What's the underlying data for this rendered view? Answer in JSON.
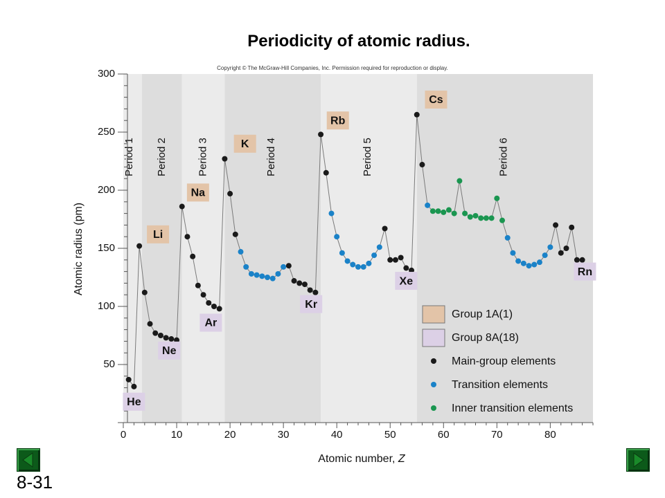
{
  "slide": {
    "title": "Periodicity of atomic radius.",
    "number": "8-31"
  },
  "chart_data": {
    "type": "scatter",
    "copyright": "Copyright © The McGraw-Hill Companies, Inc. Permission required for reproduction or display.",
    "xlabel": "Atomic number, ",
    "xlabel_italic": "Z",
    "ylabel": "Atomic radius (pm)",
    "xlim": [
      0,
      88
    ],
    "ylim": [
      0,
      300
    ],
    "xticks": [
      0,
      10,
      20,
      30,
      40,
      50,
      60,
      70,
      80
    ],
    "yticks": [
      50,
      100,
      150,
      200,
      250,
      300
    ],
    "periods": [
      {
        "label": "Period 1",
        "start": 0,
        "end": 3.5,
        "shade": "light"
      },
      {
        "label": "Period 2",
        "start": 3.5,
        "end": 11,
        "shade": "dark"
      },
      {
        "label": "Period 3",
        "start": 11,
        "end": 19,
        "shade": "light"
      },
      {
        "label": "Period 4",
        "start": 19,
        "end": 37,
        "shade": "dark"
      },
      {
        "label": "Period 5",
        "start": 37,
        "end": 55,
        "shade": "light"
      },
      {
        "label": "Period 6",
        "start": 55,
        "end": 88,
        "shade": "dark"
      }
    ],
    "legend": {
      "placement": "bottom-right",
      "items": [
        {
          "label": "Group 1A(1)",
          "kind": "swatch",
          "color": "#e3c4a8"
        },
        {
          "label": "Group 8A(18)",
          "kind": "swatch",
          "color": "#dcd0e6"
        },
        {
          "label": "Main-group elements",
          "kind": "dot",
          "color": "#1a1a1a"
        },
        {
          "label": "Transition elements",
          "kind": "dot",
          "color": "#1a82c8"
        },
        {
          "label": "Inner transition elements",
          "kind": "dot",
          "color": "#1a9650"
        }
      ]
    },
    "colors": {
      "main": "#1a1a1a",
      "transition": "#1a82c8",
      "inner": "#1a9650",
      "group1": "#e3c4a8",
      "group8": "#dcd0e6",
      "line": "#7a7a7a",
      "band_light": "#ebebeb",
      "band_dark": "#dddddd"
    },
    "points": [
      {
        "z": 1,
        "r": 37,
        "t": "m"
      },
      {
        "z": 2,
        "r": 31,
        "t": "m"
      },
      {
        "z": 3,
        "r": 152,
        "t": "m"
      },
      {
        "z": 4,
        "r": 112,
        "t": "m"
      },
      {
        "z": 5,
        "r": 85,
        "t": "m"
      },
      {
        "z": 6,
        "r": 77,
        "t": "m"
      },
      {
        "z": 7,
        "r": 75,
        "t": "m"
      },
      {
        "z": 8,
        "r": 73,
        "t": "m"
      },
      {
        "z": 9,
        "r": 72,
        "t": "m"
      },
      {
        "z": 10,
        "r": 71,
        "t": "m"
      },
      {
        "z": 11,
        "r": 186,
        "t": "m"
      },
      {
        "z": 12,
        "r": 160,
        "t": "m"
      },
      {
        "z": 13,
        "r": 143,
        "t": "m"
      },
      {
        "z": 14,
        "r": 118,
        "t": "m"
      },
      {
        "z": 15,
        "r": 110,
        "t": "m"
      },
      {
        "z": 16,
        "r": 103,
        "t": "m"
      },
      {
        "z": 17,
        "r": 100,
        "t": "m"
      },
      {
        "z": 18,
        "r": 98,
        "t": "m"
      },
      {
        "z": 19,
        "r": 227,
        "t": "m"
      },
      {
        "z": 20,
        "r": 197,
        "t": "m"
      },
      {
        "z": 21,
        "r": 162,
        "t": "m"
      },
      {
        "z": 22,
        "r": 147,
        "t": "t"
      },
      {
        "z": 23,
        "r": 134,
        "t": "t"
      },
      {
        "z": 24,
        "r": 128,
        "t": "t"
      },
      {
        "z": 25,
        "r": 127,
        "t": "t"
      },
      {
        "z": 26,
        "r": 126,
        "t": "t"
      },
      {
        "z": 27,
        "r": 125,
        "t": "t"
      },
      {
        "z": 28,
        "r": 124,
        "t": "t"
      },
      {
        "z": 29,
        "r": 128,
        "t": "t"
      },
      {
        "z": 30,
        "r": 134,
        "t": "t"
      },
      {
        "z": 31,
        "r": 135,
        "t": "m"
      },
      {
        "z": 32,
        "r": 122,
        "t": "m"
      },
      {
        "z": 33,
        "r": 120,
        "t": "m"
      },
      {
        "z": 34,
        "r": 119,
        "t": "m"
      },
      {
        "z": 35,
        "r": 114,
        "t": "m"
      },
      {
        "z": 36,
        "r": 112,
        "t": "m"
      },
      {
        "z": 37,
        "r": 248,
        "t": "m"
      },
      {
        "z": 38,
        "r": 215,
        "t": "m"
      },
      {
        "z": 39,
        "r": 180,
        "t": "t"
      },
      {
        "z": 40,
        "r": 160,
        "t": "t"
      },
      {
        "z": 41,
        "r": 146,
        "t": "t"
      },
      {
        "z": 42,
        "r": 139,
        "t": "t"
      },
      {
        "z": 43,
        "r": 136,
        "t": "t"
      },
      {
        "z": 44,
        "r": 134,
        "t": "t"
      },
      {
        "z": 45,
        "r": 134,
        "t": "t"
      },
      {
        "z": 46,
        "r": 137,
        "t": "t"
      },
      {
        "z": 47,
        "r": 144,
        "t": "t"
      },
      {
        "z": 48,
        "r": 151,
        "t": "t"
      },
      {
        "z": 49,
        "r": 167,
        "t": "m"
      },
      {
        "z": 50,
        "r": 140,
        "t": "m"
      },
      {
        "z": 51,
        "r": 140,
        "t": "m"
      },
      {
        "z": 52,
        "r": 142,
        "t": "m"
      },
      {
        "z": 53,
        "r": 133,
        "t": "m"
      },
      {
        "z": 54,
        "r": 131,
        "t": "m"
      },
      {
        "z": 55,
        "r": 265,
        "t": "m"
      },
      {
        "z": 56,
        "r": 222,
        "t": "m"
      },
      {
        "z": 57,
        "r": 187,
        "t": "t"
      },
      {
        "z": 58,
        "r": 182,
        "t": "i"
      },
      {
        "z": 59,
        "r": 182,
        "t": "i"
      },
      {
        "z": 60,
        "r": 181,
        "t": "i"
      },
      {
        "z": 61,
        "r": 183,
        "t": "i"
      },
      {
        "z": 62,
        "r": 180,
        "t": "i"
      },
      {
        "z": 63,
        "r": 208,
        "t": "i"
      },
      {
        "z": 64,
        "r": 180,
        "t": "i"
      },
      {
        "z": 65,
        "r": 177,
        "t": "i"
      },
      {
        "z": 66,
        "r": 178,
        "t": "i"
      },
      {
        "z": 67,
        "r": 176,
        "t": "i"
      },
      {
        "z": 68,
        "r": 176,
        "t": "i"
      },
      {
        "z": 69,
        "r": 176,
        "t": "i"
      },
      {
        "z": 70,
        "r": 193,
        "t": "i"
      },
      {
        "z": 71,
        "r": 174,
        "t": "i"
      },
      {
        "z": 72,
        "r": 159,
        "t": "t"
      },
      {
        "z": 73,
        "r": 146,
        "t": "t"
      },
      {
        "z": 74,
        "r": 139,
        "t": "t"
      },
      {
        "z": 75,
        "r": 137,
        "t": "t"
      },
      {
        "z": 76,
        "r": 135,
        "t": "t"
      },
      {
        "z": 77,
        "r": 136,
        "t": "t"
      },
      {
        "z": 78,
        "r": 138,
        "t": "t"
      },
      {
        "z": 79,
        "r": 144,
        "t": "t"
      },
      {
        "z": 80,
        "r": 151,
        "t": "t"
      },
      {
        "z": 81,
        "r": 170,
        "t": "m"
      },
      {
        "z": 82,
        "r": 146,
        "t": "m"
      },
      {
        "z": 83,
        "r": 150,
        "t": "m"
      },
      {
        "z": 84,
        "r": 168,
        "t": "m"
      },
      {
        "z": 85,
        "r": 140,
        "t": "m"
      },
      {
        "z": 86,
        "r": 140,
        "t": "m"
      }
    ],
    "element_labels": [
      {
        "symbol": "He",
        "z": 2,
        "group": "8A",
        "box_r": 18,
        "box_z": 2
      },
      {
        "symbol": "Li",
        "z": 3,
        "group": "1A",
        "box_r": 162,
        "box_z": 6.5
      },
      {
        "symbol": "Ne",
        "z": 10,
        "group": "8A",
        "box_r": 62,
        "box_z": 8.6
      },
      {
        "symbol": "Na",
        "z": 11,
        "group": "1A",
        "box_r": 198,
        "box_z": 14
      },
      {
        "symbol": "Ar",
        "z": 18,
        "group": "8A",
        "box_r": 86,
        "box_z": 16.4
      },
      {
        "symbol": "K",
        "z": 19,
        "group": "1A",
        "box_r": 240,
        "box_z": 22.8
      },
      {
        "symbol": "Kr",
        "z": 36,
        "group": "8A",
        "box_r": 102,
        "box_z": 35.2
      },
      {
        "symbol": "Rb",
        "z": 37,
        "group": "1A",
        "box_r": 260,
        "box_z": 40.2
      },
      {
        "symbol": "Xe",
        "z": 54,
        "group": "8A",
        "box_r": 122,
        "box_z": 53
      },
      {
        "symbol": "Cs",
        "z": 55,
        "group": "1A",
        "box_r": 278,
        "box_z": 58.6
      },
      {
        "symbol": "Rn",
        "z": 86,
        "group": "8A",
        "box_r": 130,
        "box_z": 86.5
      }
    ]
  }
}
